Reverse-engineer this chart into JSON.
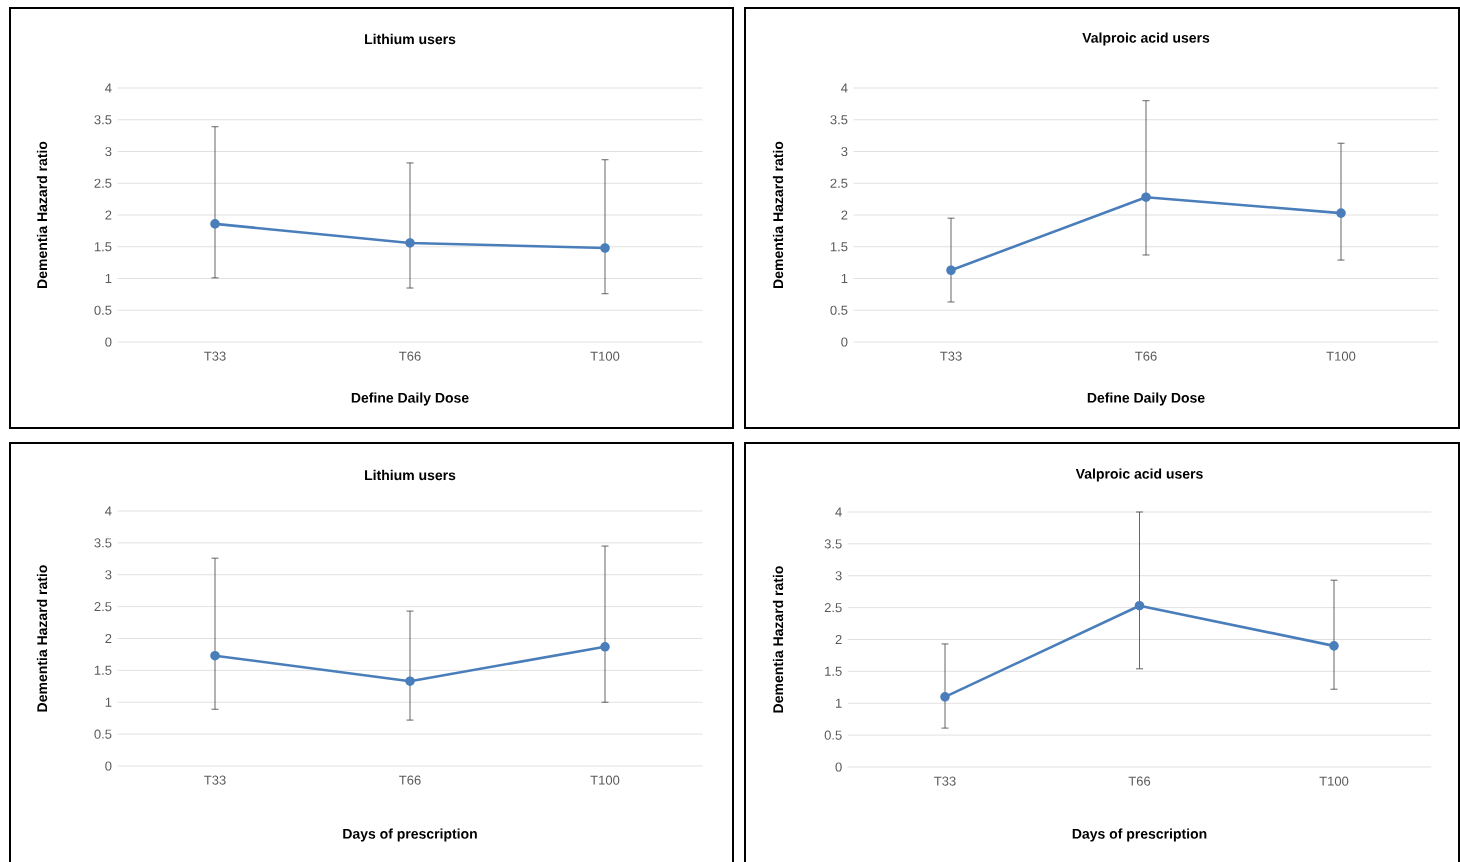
{
  "chart_data": [
    {
      "type": "line",
      "title": "Lithium users",
      "xlabel": "Define Daily Dose",
      "ylabel": "Dementia Hazard ratio",
      "categories": [
        "T33",
        "T66",
        "T100"
      ],
      "series": [
        {
          "color": "#4a7ebb",
          "values": [
            1.86,
            1.56,
            1.48
          ],
          "errors": [
            [
              1.01,
              3.39
            ],
            [
              0.85,
              2.82
            ],
            [
              0.76,
              2.87
            ]
          ]
        }
      ],
      "ylim": [
        0,
        4
      ],
      "yticks": [
        0,
        0.5,
        1,
        1.5,
        2,
        2.5,
        3,
        3.5,
        4
      ],
      "grid": "y",
      "marker": "circle"
    },
    {
      "type": "line",
      "title": "Valproic acid users",
      "xlabel": "Define Daily Dose",
      "ylabel": "Dementia Hazard ratio",
      "categories": [
        "T33",
        "T66",
        "T100"
      ],
      "series": [
        {
          "color": "#4a7ebb",
          "values": [
            1.13,
            2.28,
            2.03
          ],
          "errors": [
            [
              0.63,
              1.95
            ],
            [
              1.37,
              3.8
            ],
            [
              1.29,
              3.13
            ]
          ]
        }
      ],
      "ylim": [
        0,
        4
      ],
      "yticks": [
        0,
        0.5,
        1,
        1.5,
        2,
        2.5,
        3,
        3.5,
        4
      ],
      "grid": "y",
      "marker": "circle"
    },
    {
      "type": "line",
      "title": "Lithium users",
      "xlabel": "Days of prescription",
      "ylabel": "Dementia Hazard ratio",
      "categories": [
        "T33",
        "T66",
        "T100"
      ],
      "series": [
        {
          "color": "#4a7ebb",
          "values": [
            1.73,
            1.33,
            1.87
          ],
          "errors": [
            [
              0.89,
              3.26
            ],
            [
              0.72,
              2.43
            ],
            [
              1.0,
              3.45
            ]
          ]
        }
      ],
      "ylim": [
        0,
        4
      ],
      "yticks": [
        0,
        0.5,
        1,
        1.5,
        2,
        2.5,
        3,
        3.5,
        4
      ],
      "grid": "y",
      "marker": "circle"
    },
    {
      "type": "line",
      "title": "Valproic acid users",
      "xlabel": "Days of prescription",
      "ylabel": "Dementia Hazard ratio",
      "categories": [
        "T33",
        "T66",
        "T100"
      ],
      "series": [
        {
          "color": "#4a7ebb",
          "values": [
            1.1,
            2.53,
            1.9
          ],
          "errors": [
            [
              0.61,
              1.93
            ],
            [
              1.54,
              4.0
            ],
            [
              1.22,
              2.93
            ]
          ]
        }
      ],
      "ylim": [
        0,
        4
      ],
      "yticks": [
        0,
        0.5,
        1,
        1.5,
        2,
        2.5,
        3,
        3.5,
        4
      ],
      "grid": "y",
      "marker": "circle"
    }
  ]
}
